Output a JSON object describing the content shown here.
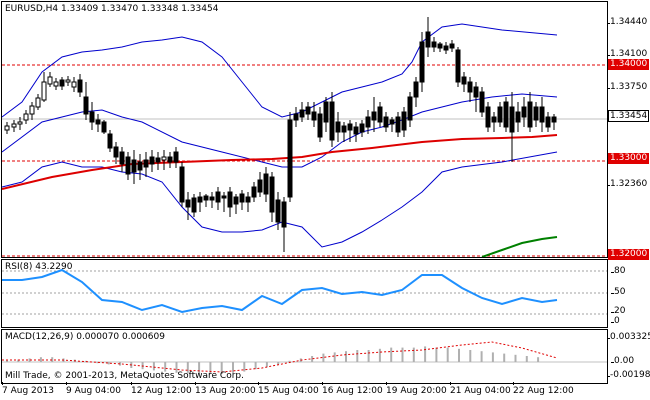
{
  "main": {
    "label": "EURUSD,H4  1.33409 1.33470 1.33348 1.33454",
    "price_ticks": [
      "1.34440",
      "1.34100",
      "1.33750",
      "1.33360",
      "1.33000",
      "1.32360"
    ],
    "levels": [
      {
        "label": "1.34000",
        "color": "#e00000"
      },
      {
        "label": "1.33000",
        "color": "#e00000"
      },
      {
        "label": "1.32000",
        "color": "#e00000"
      }
    ],
    "current_price": "1.33454"
  },
  "rsi": {
    "label": "RSI(8) 43.2290",
    "ticks": [
      "80",
      "50",
      "20",
      "0"
    ]
  },
  "macd": {
    "label": "MACD(12,26,9) 0.000070 0.000609",
    "ticks": [
      "0.003325",
      "0.00",
      "-0.001982"
    ],
    "copyright": "Mill Trade, © 2001-2013, MetaQuotes Software Corp."
  },
  "time_axis": [
    "7 Aug 2013",
    "9 Aug 04:00",
    "12 Aug 12:00",
    "13 Aug 20:00",
    "15 Aug 04:00",
    "16 Aug 12:00",
    "19 Aug 20:00",
    "21 Aug 04:00",
    "22 Aug 12:00"
  ],
  "colors": {
    "candle": "#000000",
    "bollinger": "#0000cc",
    "ma_red": "#dd0000",
    "ma_green": "#008000",
    "rsi_line": "#1e90ff",
    "macd_signal": "#e00000",
    "macd_hist": "#b0b0b0",
    "level_line": "#e00000"
  }
}
